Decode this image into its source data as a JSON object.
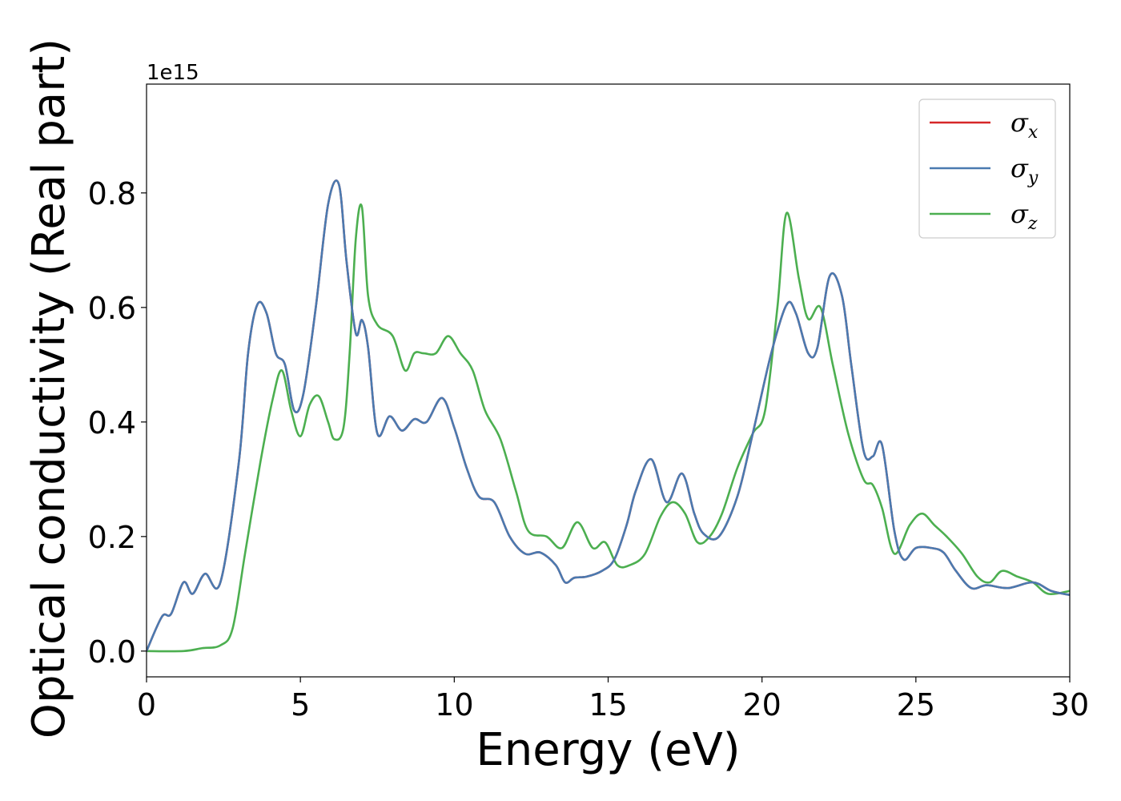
{
  "chart_data": {
    "type": "line",
    "title": "",
    "xlabel": "Energy (eV)",
    "ylabel": "Optical conductivity (Real part)",
    "y_offset_label": "1e15",
    "xlim": [
      0,
      30
    ],
    "ylim": [
      -0.045,
      0.99
    ],
    "xticks": [
      0,
      5,
      10,
      15,
      20,
      25,
      30
    ],
    "xtick_labels": [
      "0",
      "5",
      "10",
      "15",
      "20",
      "25",
      "30"
    ],
    "yticks": [
      0.0,
      0.2,
      0.4,
      0.6,
      0.8
    ],
    "ytick_labels": [
      "0.0",
      "0.2",
      "0.4",
      "0.6",
      "0.8"
    ],
    "grid": false,
    "legend_position": "top-right",
    "colors": {
      "sigma_x": "#d62728",
      "sigma_y": "#4a7ab0",
      "sigma_z": "#4caf50"
    },
    "series": [
      {
        "name": "σx",
        "legend_base": "σ",
        "legend_sub": "x",
        "color": "#d62728",
        "x": [
          0,
          0.5,
          0.8,
          1.2,
          1.5,
          1.9,
          2.4,
          3.0,
          3.3,
          3.6,
          3.9,
          4.2,
          4.5,
          4.8,
          5.1,
          5.5,
          5.9,
          6.25,
          6.5,
          6.8,
          7.0,
          7.2,
          7.5,
          7.9,
          8.3,
          8.7,
          9.1,
          9.6,
          10.0,
          10.4,
          10.8,
          11.3,
          11.8,
          12.3,
          12.8,
          13.3,
          13.6,
          13.9,
          14.3,
          14.8,
          15.2,
          15.6,
          15.9,
          16.4,
          16.9,
          17.4,
          17.8,
          18.1,
          18.6,
          19.2,
          19.7,
          20.3,
          20.8,
          21.1,
          21.5,
          21.8,
          22.2,
          22.6,
          22.9,
          23.3,
          23.6,
          23.9,
          24.3,
          24.6,
          25.0,
          25.5,
          25.9,
          26.3,
          26.8,
          27.3,
          28.0,
          28.8,
          29.4,
          30.0
        ],
        "y": [
          0.0,
          0.06,
          0.065,
          0.12,
          0.1,
          0.135,
          0.12,
          0.33,
          0.52,
          0.605,
          0.59,
          0.52,
          0.5,
          0.42,
          0.45,
          0.6,
          0.78,
          0.815,
          0.68,
          0.555,
          0.578,
          0.53,
          0.38,
          0.41,
          0.385,
          0.405,
          0.4,
          0.442,
          0.39,
          0.32,
          0.27,
          0.26,
          0.2,
          0.17,
          0.172,
          0.15,
          0.12,
          0.128,
          0.13,
          0.14,
          0.16,
          0.22,
          0.28,
          0.335,
          0.26,
          0.31,
          0.24,
          0.205,
          0.2,
          0.27,
          0.38,
          0.52,
          0.605,
          0.59,
          0.52,
          0.53,
          0.655,
          0.62,
          0.5,
          0.35,
          0.34,
          0.36,
          0.21,
          0.16,
          0.18,
          0.18,
          0.172,
          0.14,
          0.11,
          0.115,
          0.11,
          0.12,
          0.105,
          0.098
        ]
      },
      {
        "name": "σy",
        "legend_base": "σ",
        "legend_sub": "y",
        "color": "#4a7ab0",
        "x": [
          0,
          0.5,
          0.8,
          1.2,
          1.5,
          1.9,
          2.4,
          3.0,
          3.3,
          3.6,
          3.9,
          4.2,
          4.5,
          4.8,
          5.1,
          5.5,
          5.9,
          6.25,
          6.5,
          6.8,
          7.0,
          7.2,
          7.5,
          7.9,
          8.3,
          8.7,
          9.1,
          9.6,
          10.0,
          10.4,
          10.8,
          11.3,
          11.8,
          12.3,
          12.8,
          13.3,
          13.6,
          13.9,
          14.3,
          14.8,
          15.2,
          15.6,
          15.9,
          16.4,
          16.9,
          17.4,
          17.8,
          18.1,
          18.6,
          19.2,
          19.7,
          20.3,
          20.8,
          21.1,
          21.5,
          21.8,
          22.2,
          22.6,
          22.9,
          23.3,
          23.6,
          23.9,
          24.3,
          24.6,
          25.0,
          25.5,
          25.9,
          26.3,
          26.8,
          27.3,
          28.0,
          28.8,
          29.4,
          30.0
        ],
        "y": [
          0.0,
          0.06,
          0.065,
          0.12,
          0.1,
          0.135,
          0.12,
          0.33,
          0.52,
          0.605,
          0.59,
          0.52,
          0.5,
          0.42,
          0.45,
          0.6,
          0.78,
          0.815,
          0.68,
          0.555,
          0.578,
          0.53,
          0.38,
          0.41,
          0.385,
          0.405,
          0.4,
          0.442,
          0.39,
          0.32,
          0.27,
          0.26,
          0.2,
          0.17,
          0.172,
          0.15,
          0.12,
          0.128,
          0.13,
          0.14,
          0.16,
          0.22,
          0.28,
          0.335,
          0.26,
          0.31,
          0.24,
          0.205,
          0.2,
          0.27,
          0.38,
          0.52,
          0.605,
          0.59,
          0.52,
          0.53,
          0.655,
          0.62,
          0.5,
          0.35,
          0.34,
          0.36,
          0.21,
          0.16,
          0.18,
          0.18,
          0.172,
          0.14,
          0.11,
          0.115,
          0.11,
          0.12,
          0.105,
          0.098
        ]
      },
      {
        "name": "σz",
        "legend_base": "σ",
        "legend_sub": "z",
        "color": "#4caf50",
        "x": [
          0,
          1.2,
          1.8,
          2.4,
          2.8,
          3.2,
          3.7,
          4.1,
          4.4,
          4.7,
          5.0,
          5.3,
          5.6,
          5.9,
          6.1,
          6.4,
          6.6,
          6.8,
          7.0,
          7.2,
          7.5,
          8.0,
          8.4,
          8.7,
          9.0,
          9.4,
          9.8,
          10.2,
          10.6,
          11.0,
          11.5,
          12.0,
          12.4,
          13.0,
          13.5,
          14.0,
          14.5,
          14.9,
          15.3,
          15.7,
          16.2,
          16.7,
          17.1,
          17.5,
          17.9,
          18.3,
          18.7,
          19.2,
          19.7,
          20.1,
          20.5,
          20.8,
          21.2,
          21.5,
          21.9,
          22.3,
          22.8,
          23.3,
          23.6,
          23.9,
          24.3,
          24.8,
          25.2,
          25.6,
          26.0,
          26.5,
          27.0,
          27.4,
          27.8,
          28.3,
          28.8,
          29.3,
          30.0
        ],
        "y": [
          0.0,
          0.0,
          0.005,
          0.01,
          0.04,
          0.17,
          0.33,
          0.44,
          0.49,
          0.42,
          0.375,
          0.43,
          0.445,
          0.4,
          0.37,
          0.39,
          0.52,
          0.72,
          0.775,
          0.62,
          0.57,
          0.55,
          0.49,
          0.52,
          0.52,
          0.52,
          0.55,
          0.52,
          0.49,
          0.42,
          0.37,
          0.28,
          0.21,
          0.2,
          0.18,
          0.225,
          0.18,
          0.19,
          0.15,
          0.15,
          0.17,
          0.235,
          0.26,
          0.24,
          0.19,
          0.2,
          0.24,
          0.32,
          0.38,
          0.42,
          0.6,
          0.765,
          0.65,
          0.58,
          0.6,
          0.5,
          0.38,
          0.3,
          0.29,
          0.25,
          0.17,
          0.22,
          0.24,
          0.22,
          0.2,
          0.17,
          0.13,
          0.12,
          0.14,
          0.13,
          0.12,
          0.1,
          0.105
        ]
      }
    ]
  }
}
